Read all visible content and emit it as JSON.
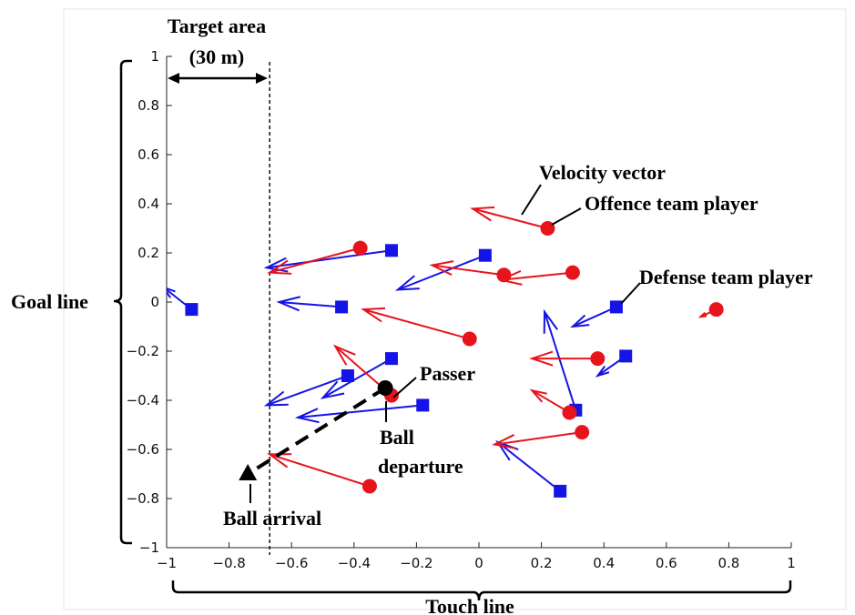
{
  "chart_data": {
    "type": "scatter",
    "xlim": [
      -1,
      1
    ],
    "ylim": [
      -1,
      1
    ],
    "x_ticks": [
      "−1",
      "−0.8",
      "−0.6",
      "−0.4",
      "−0.2",
      "0",
      "0.2",
      "0.4",
      "0.6",
      "0.8",
      "1"
    ],
    "y_ticks": [
      "−1",
      "−0.8",
      "−0.6",
      "−0.4",
      "−0.2",
      "0",
      "0.2",
      "0.4",
      "0.6",
      "0.8",
      "1"
    ],
    "grid": false,
    "target_area_x": -0.67,
    "offence": [
      {
        "x": 0.22,
        "y": 0.3,
        "vx": -0.24,
        "vy": 0.08
      },
      {
        "x": -0.38,
        "y": 0.22,
        "vx": -0.29,
        "vy": -0.1
      },
      {
        "x": 0.08,
        "y": 0.11,
        "vx": -0.23,
        "vy": 0.04
      },
      {
        "x": 0.3,
        "y": 0.12,
        "vx": -0.23,
        "vy": -0.03
      },
      {
        "x": -0.03,
        "y": -0.15,
        "vx": -0.34,
        "vy": 0.12
      },
      {
        "x": 0.38,
        "y": -0.23,
        "vx": -0.21,
        "vy": 0.0
      },
      {
        "x": 0.76,
        "y": -0.03,
        "vx": -0.05,
        "vy": -0.03
      },
      {
        "x": -0.28,
        "y": -0.38,
        "vx": -0.18,
        "vy": 0.2
      },
      {
        "x": 0.29,
        "y": -0.45,
        "vx": -0.12,
        "vy": 0.09
      },
      {
        "x": 0.33,
        "y": -0.53,
        "vx": -0.28,
        "vy": -0.05
      },
      {
        "x": -0.35,
        "y": -0.75,
        "vx": -0.32,
        "vy": 0.13
      }
    ],
    "defense": [
      {
        "x": -0.28,
        "y": 0.21,
        "vx": -0.4,
        "vy": -0.07
      },
      {
        "x": 0.02,
        "y": 0.19,
        "vx": -0.28,
        "vy": -0.14
      },
      {
        "x": -0.44,
        "y": -0.02,
        "vx": -0.2,
        "vy": 0.02
      },
      {
        "x": -0.92,
        "y": -0.03,
        "vx": -0.09,
        "vy": 0.09
      },
      {
        "x": 0.44,
        "y": -0.02,
        "vx": -0.14,
        "vy": -0.08
      },
      {
        "x": 0.47,
        "y": -0.22,
        "vx": -0.09,
        "vy": -0.08
      },
      {
        "x": -0.28,
        "y": -0.23,
        "vx": -0.22,
        "vy": -0.16
      },
      {
        "x": -0.42,
        "y": -0.3,
        "vx": -0.26,
        "vy": -0.12
      },
      {
        "x": -0.18,
        "y": -0.42,
        "vx": -0.4,
        "vy": -0.05
      },
      {
        "x": 0.31,
        "y": -0.44,
        "vx": -0.1,
        "vy": 0.4
      },
      {
        "x": 0.26,
        "y": -0.77,
        "vx": -0.2,
        "vy": 0.2
      }
    ],
    "passer": {
      "x": -0.3,
      "y": -0.35
    },
    "ball_arrival": {
      "x": -0.74,
      "y": -0.7
    }
  },
  "annotations": {
    "target_area_line1": "Target area",
    "target_area_line2": "(30 m)",
    "velocity_vector": "Velocity vector",
    "offence_team_player": "Offence team player",
    "defense_team_player": "Defense team player",
    "goal_line": "Goal line",
    "touch_line": "Touch line",
    "passer": "Passer",
    "ball_departure_line1": "Ball",
    "ball_departure_line2": "departure",
    "ball_arrival": "Ball arrival"
  },
  "colors": {
    "offence": "#e8141c",
    "defense": "#1414e6",
    "axis": "#222222"
  }
}
